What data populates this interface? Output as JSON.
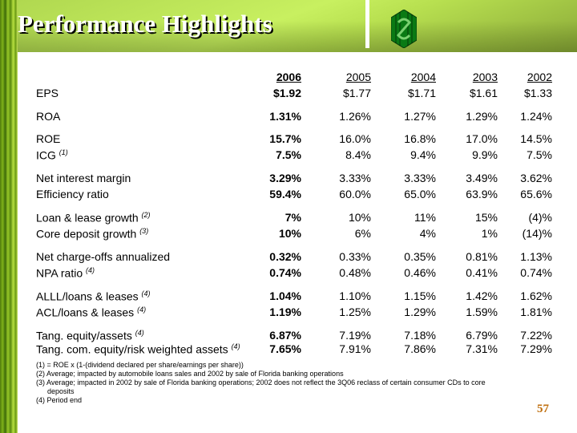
{
  "header": {
    "title": "Performance Highlights"
  },
  "table": {
    "years": [
      "2006",
      "2005",
      "2004",
      "2003",
      "2002"
    ],
    "rows": [
      {
        "label": "EPS",
        "note": "",
        "values": [
          "$1.92",
          "$1.77",
          "$1.71",
          "$1.61",
          "$1.33"
        ]
      },
      {
        "label": "ROA",
        "note": "",
        "values": [
          "1.31%",
          "1.26%",
          "1.27%",
          "1.29%",
          "1.24%"
        ]
      },
      {
        "label": "ROE",
        "note": "",
        "values": [
          "15.7%",
          "16.0%",
          "16.8%",
          "17.0%",
          "14.5%"
        ]
      },
      {
        "label": "ICG",
        "note": "(1)",
        "values": [
          "7.5%",
          "8.4%",
          "9.4%",
          "9.9%",
          "7.5%"
        ]
      },
      {
        "label": "Net interest margin",
        "note": "",
        "values": [
          "3.29%",
          "3.33%",
          "3.33%",
          "3.49%",
          "3.62%"
        ]
      },
      {
        "label": "Efficiency ratio",
        "note": "",
        "values": [
          "59.4%",
          "60.0%",
          "65.0%",
          "63.9%",
          "65.6%"
        ]
      },
      {
        "label": "Loan & lease growth",
        "note": "(2)",
        "values": [
          "7%",
          "10%",
          "11%",
          "15%",
          "(4)%"
        ]
      },
      {
        "label": "Core deposit growth",
        "note": "(3)",
        "values": [
          "10%",
          "6%",
          "4%",
          "1%",
          "(14)%"
        ]
      },
      {
        "label": "Net charge-offs annualized",
        "note": "",
        "values": [
          "0.32%",
          "0.33%",
          "0.35%",
          "0.81%",
          "1.13%"
        ]
      },
      {
        "label": "NPA ratio",
        "note": "(4)",
        "values": [
          "0.74%",
          "0.48%",
          "0.46%",
          "0.41%",
          "0.74%"
        ]
      },
      {
        "label": "ALLL/loans & leases",
        "note": "(4)",
        "values": [
          "1.04%",
          "1.10%",
          "1.15%",
          "1.42%",
          "1.62%"
        ]
      },
      {
        "label": "ACL/loans & leases",
        "note": "(4)",
        "values": [
          "1.19%",
          "1.25%",
          "1.29%",
          "1.59%",
          "1.81%"
        ]
      },
      {
        "label": "Tang. equity/assets",
        "note": "(4)",
        "values": [
          "6.87%",
          "7.19%",
          "7.18%",
          "6.79%",
          "7.22%"
        ]
      },
      {
        "label": "Tang. com. equity/risk weighted assets",
        "note": "(4)",
        "values": [
          "7.65%",
          "7.91%",
          "7.86%",
          "7.31%",
          "7.29%"
        ]
      }
    ]
  },
  "footnotes": [
    "(1) = ROE x (1-(dividend declared per share/earnings per share))",
    "(2) Average; impacted by automobile loans sales and 2002 by sale of Florida banking operations",
    "(3) Average; impacted in 2002 by sale of Florida banking operations; 2002 does not reflect the 3Q06 reclass of certain consumer CDs to core",
    "deposits",
    "(4) Period end"
  ],
  "page_number": "57",
  "colors": {
    "header_green": "#c8f060",
    "logo_green": "#0a7a14",
    "page_number": "#c07010"
  }
}
